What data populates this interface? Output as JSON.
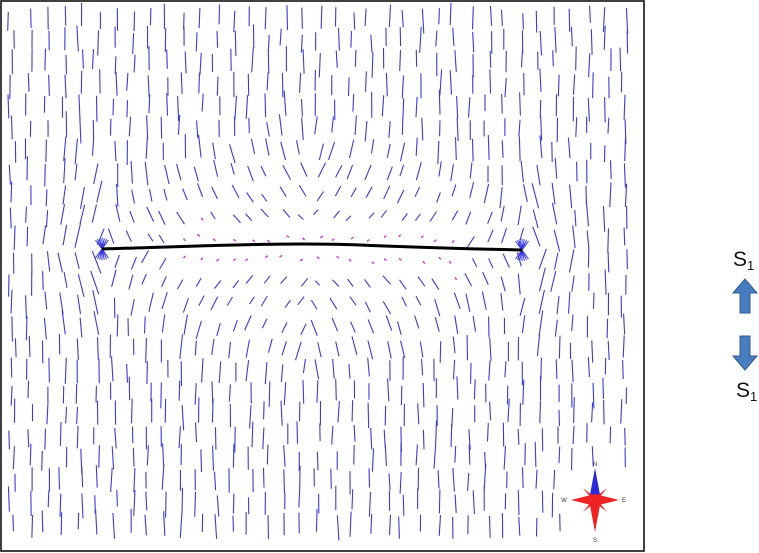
{
  "colors": {
    "background": "#ffffff",
    "frame": "#000000",
    "stress_tick": "#3a3adf",
    "tip_tick": "#cc44cc",
    "fracture": "#000000",
    "arrow": "#4a7dc0",
    "arrow_outline": "#2f5a92",
    "compass_ns": "#2a2ad8",
    "compass_ew": "#ee2222"
  },
  "legend": {
    "top_label": {
      "base": "S",
      "sub": "1"
    },
    "bottom_label": {
      "base": "S",
      "sub": "1"
    },
    "top_arrow_icon": "arrow-up-icon",
    "bottom_arrow_icon": "arrow-down-icon"
  },
  "compass": {
    "icon": "compass-rose-icon",
    "north": "N",
    "south": "S",
    "east": "E",
    "west": "W"
  }
}
